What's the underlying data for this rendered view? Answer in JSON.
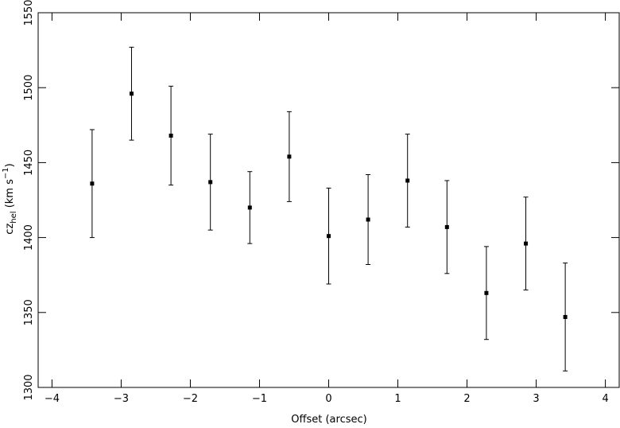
{
  "chart_data": {
    "type": "scatter",
    "xlabel": "Offset (arcsec)",
    "ylabel": {
      "parts": [
        "cz",
        "hel",
        " (km s",
        "−1",
        ")"
      ]
    },
    "x": [
      -3.42,
      -2.85,
      -2.28,
      -1.71,
      -1.14,
      -0.57,
      0,
      0.57,
      1.14,
      1.71,
      2.28,
      2.85,
      3.42
    ],
    "values": [
      1436,
      1496,
      1468,
      1437,
      1420,
      1454,
      1401,
      1412,
      1438,
      1407,
      1363,
      1396,
      1347
    ],
    "errors": [
      36,
      31,
      33,
      32,
      24,
      30,
      32,
      30,
      31,
      31,
      31,
      31,
      36
    ],
    "color": "#000000",
    "xlim": [
      -4.2,
      4.2
    ],
    "ylim": [
      1300,
      1550
    ],
    "xticks": [
      {
        "value": -4,
        "label": "−4"
      },
      {
        "value": -3,
        "label": "−3"
      },
      {
        "value": -2,
        "label": "−2"
      },
      {
        "value": -1,
        "label": "−1"
      },
      0,
      1,
      2,
      3,
      4
    ],
    "yticks": [
      1300,
      1350,
      1400,
      1450,
      1500,
      1550
    ]
  }
}
